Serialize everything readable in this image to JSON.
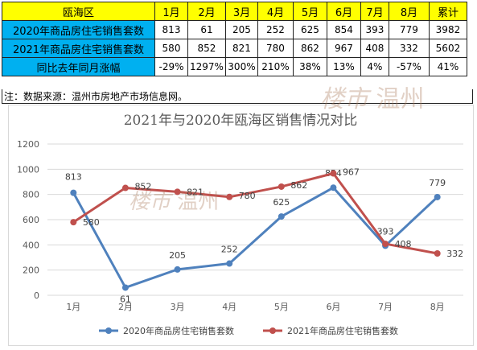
{
  "table": {
    "header": [
      "瓯海区",
      "1月",
      "2月",
      "3月",
      "4月",
      "5月",
      "6月",
      "7月",
      "8月",
      "累计"
    ],
    "rows": [
      [
        "2020年商品房住宅销售套数",
        "813",
        "61",
        "205",
        "252",
        "625",
        "854",
        "393",
        "779",
        "3982"
      ],
      [
        "2021年商品房住宅销售套数",
        "580",
        "852",
        "821",
        "780",
        "862",
        "967",
        "408",
        "332",
        "5602"
      ],
      [
        "同比去年同月涨幅",
        "-29%",
        "1297%",
        "300%",
        "210%",
        "38%",
        "13%",
        "4%",
        "-57%",
        "41%"
      ]
    ]
  },
  "note": "注：数据来源：温州市房地产市场信息网。",
  "watermark": {
    "a": "楼市",
    "b": "温州"
  },
  "colors": {
    "header_bg": "#ffff00",
    "rowhead_bg": "#00b0f0",
    "series_2020": "#4f81bd",
    "series_2021": "#c0504d"
  },
  "chart_data": {
    "type": "line",
    "title": "2021年与2020年瓯海区销售情况对比",
    "categories": [
      "1月",
      "2月",
      "3月",
      "4月",
      "5月",
      "6月",
      "7月",
      "8月"
    ],
    "series": [
      {
        "name": "2020年商品房住宅销售套数",
        "values": [
          813,
          61,
          205,
          252,
          625,
          854,
          393,
          779
        ]
      },
      {
        "name": "2021年商品房住宅销售套数",
        "values": [
          580,
          852,
          821,
          780,
          862,
          967,
          408,
          332
        ]
      }
    ],
    "ylim": [
      0,
      1200
    ],
    "yticks": [
      0,
      200,
      400,
      600,
      800,
      1000,
      1200
    ],
    "grid": true,
    "legend": "bottom"
  }
}
